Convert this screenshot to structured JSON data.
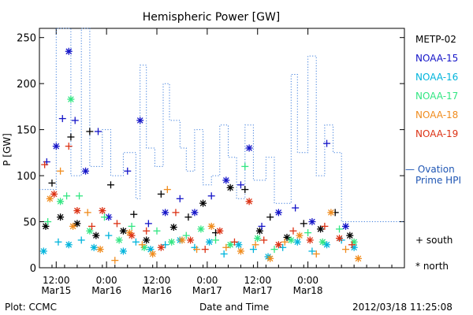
{
  "chart_data": {
    "type": "scatter",
    "title": "Hemispheric Power [GW]",
    "xlabel": "Date and Time",
    "ylabel": "P [GW]",
    "ylim": [
      0,
      260
    ],
    "yticks": [
      0,
      50,
      100,
      150,
      200,
      250
    ],
    "xlim": [
      "2012-03-15T08:00",
      "2012-03-18T23:00"
    ],
    "xticks": [
      {
        "t": "2012-03-15T12:00",
        "line1": "12:00",
        "line2": "Mar15"
      },
      {
        "t": "2012-03-16T00:00",
        "line1": "0:00",
        "line2": "Mar16"
      },
      {
        "t": "2012-03-16T12:00",
        "line1": "12:00",
        "line2": "Mar16"
      },
      {
        "t": "2012-03-17T00:00",
        "line1": "0:00",
        "line2": "Mar17"
      },
      {
        "t": "2012-03-17T12:00",
        "line1": "12:00",
        "line2": "Mar17"
      },
      {
        "t": "2012-03-18T00:00",
        "line1": "0:00",
        "line2": "Mar18"
      }
    ],
    "series": [
      {
        "name": "METP-02",
        "color": "#000000",
        "points": [
          [
            "2012-03-15T09:30",
            45
          ],
          [
            "2012-03-15T11:00",
            92
          ],
          [
            "2012-03-15T13:00",
            55
          ],
          [
            "2012-03-15T15:30",
            142
          ],
          [
            "2012-03-15T17:00",
            48
          ],
          [
            "2012-03-15T20:00",
            148
          ],
          [
            "2012-03-15T21:30",
            35
          ],
          [
            "2012-03-16T01:00",
            90
          ],
          [
            "2012-03-16T04:00",
            40
          ],
          [
            "2012-03-16T06:30",
            58
          ],
          [
            "2012-03-16T09:30",
            30
          ],
          [
            "2012-03-16T13:00",
            80
          ],
          [
            "2012-03-16T16:00",
            44
          ],
          [
            "2012-03-16T19:30",
            55
          ],
          [
            "2012-03-16T23:00",
            70
          ],
          [
            "2012-03-17T02:00",
            38
          ],
          [
            "2012-03-17T05:30",
            87
          ],
          [
            "2012-03-17T09:00",
            85
          ],
          [
            "2012-03-17T12:30",
            40
          ],
          [
            "2012-03-17T15:00",
            55
          ],
          [
            "2012-03-17T19:00",
            33
          ],
          [
            "2012-03-17T23:00",
            48
          ],
          [
            "2012-03-18T03:00",
            42
          ],
          [
            "2012-03-18T06:30",
            60
          ],
          [
            "2012-03-18T10:00",
            35
          ]
        ]
      },
      {
        "name": "NOAA-15",
        "color": "#1515c8",
        "points": [
          [
            "2012-03-15T09:45",
            115
          ],
          [
            "2012-03-15T12:00",
            132
          ],
          [
            "2012-03-15T13:30",
            162
          ],
          [
            "2012-03-15T15:00",
            235
          ],
          [
            "2012-03-15T16:30",
            160
          ],
          [
            "2012-03-15T19:00",
            105
          ],
          [
            "2012-03-15T22:00",
            148
          ],
          [
            "2012-03-16T00:30",
            55
          ],
          [
            "2012-03-16T05:00",
            105
          ],
          [
            "2012-03-16T08:00",
            160
          ],
          [
            "2012-03-16T10:00",
            48
          ],
          [
            "2012-03-16T14:00",
            60
          ],
          [
            "2012-03-16T17:30",
            75
          ],
          [
            "2012-03-16T21:00",
            60
          ],
          [
            "2012-03-17T01:00",
            78
          ],
          [
            "2012-03-17T04:30",
            95
          ],
          [
            "2012-03-17T08:00",
            90
          ],
          [
            "2012-03-17T10:00",
            130
          ],
          [
            "2012-03-17T13:00",
            45
          ],
          [
            "2012-03-17T17:00",
            60
          ],
          [
            "2012-03-17T21:00",
            65
          ],
          [
            "2012-03-18T01:00",
            50
          ],
          [
            "2012-03-18T04:30",
            135
          ],
          [
            "2012-03-18T09:00",
            45
          ]
        ]
      },
      {
        "name": "NOAA-16",
        "color": "#00b4dc",
        "points": [
          [
            "2012-03-15T09:00",
            18
          ],
          [
            "2012-03-15T12:30",
            28
          ],
          [
            "2012-03-15T15:00",
            25
          ],
          [
            "2012-03-15T18:00",
            30
          ],
          [
            "2012-03-15T21:00",
            22
          ],
          [
            "2012-03-16T00:30",
            35
          ],
          [
            "2012-03-16T04:00",
            18
          ],
          [
            "2012-03-16T07:00",
            28
          ],
          [
            "2012-03-16T10:30",
            20
          ],
          [
            "2012-03-16T14:00",
            25
          ],
          [
            "2012-03-16T17:30",
            30
          ],
          [
            "2012-03-16T21:00",
            22
          ],
          [
            "2012-03-17T00:30",
            28
          ],
          [
            "2012-03-17T04:00",
            15
          ],
          [
            "2012-03-17T07:30",
            25
          ],
          [
            "2012-03-17T11:00",
            20
          ],
          [
            "2012-03-17T14:30",
            12
          ],
          [
            "2012-03-17T18:00",
            22
          ],
          [
            "2012-03-17T21:30",
            28
          ],
          [
            "2012-03-18T01:00",
            18
          ],
          [
            "2012-03-18T04:30",
            25
          ],
          [
            "2012-03-18T08:00",
            30
          ],
          [
            "2012-03-18T11:00",
            22
          ]
        ]
      },
      {
        "name": "NOAA-17",
        "color": "#32e682",
        "points": [
          [
            "2012-03-15T10:00",
            50
          ],
          [
            "2012-03-15T13:00",
            72
          ],
          [
            "2012-03-15T14:30",
            78
          ],
          [
            "2012-03-15T15:30",
            183
          ],
          [
            "2012-03-15T17:30",
            78
          ],
          [
            "2012-03-15T20:00",
            40
          ],
          [
            "2012-03-15T23:30",
            55
          ],
          [
            "2012-03-16T03:00",
            30
          ],
          [
            "2012-03-16T06:00",
            45
          ],
          [
            "2012-03-16T09:00",
            22
          ],
          [
            "2012-03-16T12:00",
            40
          ],
          [
            "2012-03-16T15:30",
            28
          ],
          [
            "2012-03-16T19:00",
            35
          ],
          [
            "2012-03-16T22:30",
            42
          ],
          [
            "2012-03-17T02:00",
            30
          ],
          [
            "2012-03-17T05:30",
            25
          ],
          [
            "2012-03-17T09:00",
            110
          ],
          [
            "2012-03-17T12:00",
            32
          ],
          [
            "2012-03-17T16:00",
            20
          ],
          [
            "2012-03-17T20:00",
            30
          ],
          [
            "2012-03-18T00:00",
            38
          ],
          [
            "2012-03-18T03:30",
            28
          ],
          [
            "2012-03-18T07:30",
            42
          ],
          [
            "2012-03-18T11:00",
            28
          ]
        ]
      },
      {
        "name": "NOAA-18",
        "color": "#f08c1e",
        "points": [
          [
            "2012-03-15T10:30",
            75
          ],
          [
            "2012-03-15T13:00",
            105
          ],
          [
            "2012-03-15T16:00",
            45
          ],
          [
            "2012-03-15T19:30",
            60
          ],
          [
            "2012-03-15T22:30",
            20
          ],
          [
            "2012-03-16T02:00",
            8
          ],
          [
            "2012-03-16T05:30",
            38
          ],
          [
            "2012-03-16T08:30",
            25
          ],
          [
            "2012-03-16T11:00",
            15
          ],
          [
            "2012-03-16T14:30",
            85
          ],
          [
            "2012-03-16T18:00",
            30
          ],
          [
            "2012-03-16T21:30",
            20
          ],
          [
            "2012-03-17T01:00",
            45
          ],
          [
            "2012-03-17T04:30",
            22
          ],
          [
            "2012-03-17T08:00",
            18
          ],
          [
            "2012-03-17T11:30",
            25
          ],
          [
            "2012-03-17T15:00",
            10
          ],
          [
            "2012-03-17T18:30",
            28
          ],
          [
            "2012-03-17T22:00",
            35
          ],
          [
            "2012-03-18T02:00",
            15
          ],
          [
            "2012-03-18T05:30",
            60
          ],
          [
            "2012-03-18T09:00",
            20
          ],
          [
            "2012-03-18T12:00",
            10
          ]
        ]
      },
      {
        "name": "NOAA-19",
        "color": "#dc3214",
        "points": [
          [
            "2012-03-15T09:15",
            112
          ],
          [
            "2012-03-15T11:30",
            80
          ],
          [
            "2012-03-15T15:00",
            132
          ],
          [
            "2012-03-15T17:00",
            62
          ],
          [
            "2012-03-15T20:30",
            45
          ],
          [
            "2012-03-15T23:00",
            62
          ],
          [
            "2012-03-16T02:30",
            48
          ],
          [
            "2012-03-16T06:00",
            35
          ],
          [
            "2012-03-16T09:30",
            40
          ],
          [
            "2012-03-16T13:00",
            22
          ],
          [
            "2012-03-16T16:30",
            60
          ],
          [
            "2012-03-16T20:00",
            30
          ],
          [
            "2012-03-16T23:30",
            20
          ],
          [
            "2012-03-17T03:00",
            40
          ],
          [
            "2012-03-17T06:30",
            28
          ],
          [
            "2012-03-17T10:00",
            72
          ],
          [
            "2012-03-17T13:30",
            30
          ],
          [
            "2012-03-17T17:00",
            25
          ],
          [
            "2012-03-17T20:30",
            40
          ],
          [
            "2012-03-18T00:30",
            30
          ],
          [
            "2012-03-18T04:00",
            45
          ],
          [
            "2012-03-18T07:30",
            32
          ],
          [
            "2012-03-18T10:30",
            25
          ]
        ]
      }
    ],
    "ovation": {
      "name": "Ovation Prime HPI",
      "color": "#3c7ddc",
      "points": [
        [
          "2012-03-15T08:00",
          85
        ],
        [
          "2012-03-15T12:00",
          85
        ],
        [
          "2012-03-15T12:00",
          260
        ],
        [
          "2012-03-15T15:30",
          260
        ],
        [
          "2012-03-15T15:30",
          100
        ],
        [
          "2012-03-15T18:00",
          100
        ],
        [
          "2012-03-15T18:00",
          260
        ],
        [
          "2012-03-15T20:00",
          260
        ],
        [
          "2012-03-15T20:00",
          110
        ],
        [
          "2012-03-15T23:00",
          110
        ],
        [
          "2012-03-15T23:00",
          150
        ],
        [
          "2012-03-16T01:00",
          150
        ],
        [
          "2012-03-16T01:00",
          100
        ],
        [
          "2012-03-16T04:00",
          100
        ],
        [
          "2012-03-16T04:00",
          125
        ],
        [
          "2012-03-16T07:00",
          125
        ],
        [
          "2012-03-16T07:00",
          75
        ],
        [
          "2012-03-16T08:00",
          75
        ],
        [
          "2012-03-16T08:00",
          220
        ],
        [
          "2012-03-16T09:30",
          220
        ],
        [
          "2012-03-16T09:30",
          130
        ],
        [
          "2012-03-16T11:30",
          130
        ],
        [
          "2012-03-16T11:30",
          110
        ],
        [
          "2012-03-16T13:30",
          110
        ],
        [
          "2012-03-16T13:30",
          200
        ],
        [
          "2012-03-16T15:00",
          200
        ],
        [
          "2012-03-16T15:00",
          160
        ],
        [
          "2012-03-16T17:30",
          160
        ],
        [
          "2012-03-16T17:30",
          130
        ],
        [
          "2012-03-16T19:00",
          130
        ],
        [
          "2012-03-16T19:00",
          105
        ],
        [
          "2012-03-16T21:00",
          105
        ],
        [
          "2012-03-16T21:00",
          150
        ],
        [
          "2012-03-16T23:00",
          150
        ],
        [
          "2012-03-16T23:00",
          90
        ],
        [
          "2012-03-17T01:00",
          90
        ],
        [
          "2012-03-17T01:00",
          100
        ],
        [
          "2012-03-17T03:00",
          100
        ],
        [
          "2012-03-17T03:00",
          155
        ],
        [
          "2012-03-17T05:00",
          155
        ],
        [
          "2012-03-17T05:00",
          120
        ],
        [
          "2012-03-17T07:00",
          120
        ],
        [
          "2012-03-17T07:00",
          75
        ],
        [
          "2012-03-17T09:00",
          75
        ],
        [
          "2012-03-17T09:00",
          155
        ],
        [
          "2012-03-17T11:00",
          155
        ],
        [
          "2012-03-17T11:00",
          95
        ],
        [
          "2012-03-17T14:00",
          95
        ],
        [
          "2012-03-17T14:00",
          120
        ],
        [
          "2012-03-17T16:00",
          120
        ],
        [
          "2012-03-17T16:00",
          70
        ],
        [
          "2012-03-17T20:00",
          70
        ],
        [
          "2012-03-17T20:00",
          210
        ],
        [
          "2012-03-17T21:30",
          210
        ],
        [
          "2012-03-17T21:30",
          125
        ],
        [
          "2012-03-18T00:00",
          125
        ],
        [
          "2012-03-18T00:00",
          230
        ],
        [
          "2012-03-18T02:00",
          230
        ],
        [
          "2012-03-18T02:00",
          100
        ],
        [
          "2012-03-18T04:00",
          100
        ],
        [
          "2012-03-18T04:00",
          155
        ],
        [
          "2012-03-18T06:00",
          155
        ],
        [
          "2012-03-18T06:00",
          125
        ],
        [
          "2012-03-18T08:00",
          125
        ],
        [
          "2012-03-18T08:00",
          50
        ],
        [
          "2012-03-18T23:00",
          50
        ]
      ]
    },
    "legend": {
      "satellites": [
        "METP-02",
        "NOAA-15",
        "NOAA-16",
        "NOAA-17",
        "NOAA-18",
        "NOAA-19"
      ],
      "model_line": "— Ovation",
      "model_line2": "Prime HPI",
      "south_label": "+ south",
      "north_label": "* north"
    },
    "grid": false
  },
  "footer": {
    "left": "Plot: CCMC",
    "center": "Date and Time",
    "right": "2012/03/18 11:25:08"
  }
}
